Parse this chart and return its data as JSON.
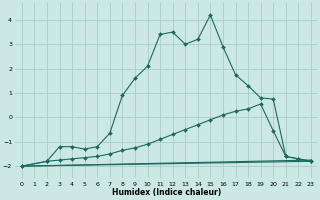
{
  "xlabel": "Humidex (Indice chaleur)",
  "background_color": "#cce8e4",
  "grid_color": "#aacccc",
  "line_color": "#1a6b5a",
  "xlim": [
    -0.5,
    23.5
  ],
  "ylim": [
    -2.5,
    4.7
  ],
  "yticks": [
    -2,
    -1,
    0,
    1,
    2,
    3,
    4
  ],
  "xticks": [
    0,
    1,
    2,
    3,
    4,
    5,
    6,
    7,
    8,
    9,
    10,
    11,
    12,
    13,
    14,
    15,
    16,
    17,
    18,
    19,
    20,
    21,
    22,
    23
  ],
  "line1_x": [
    0,
    2,
    3,
    4,
    5,
    6,
    7,
    8,
    9,
    10,
    11,
    12,
    13,
    14,
    15,
    16,
    17,
    18,
    19,
    20,
    21,
    22,
    23
  ],
  "line1_y": [
    -2.0,
    -1.8,
    -1.2,
    -1.2,
    -1.3,
    -1.2,
    -0.65,
    0.9,
    1.6,
    2.1,
    3.4,
    3.5,
    3.0,
    3.2,
    4.2,
    2.9,
    1.75,
    1.3,
    0.8,
    0.75,
    -1.6,
    -1.7,
    -1.8
  ],
  "line2_x": [
    0,
    2,
    3,
    4,
    5,
    6,
    7,
    8,
    9,
    10,
    11,
    12,
    13,
    14,
    15,
    16,
    17,
    18,
    19,
    20,
    21,
    22,
    23
  ],
  "line2_y": [
    -2.0,
    -1.8,
    -1.75,
    -1.7,
    -1.65,
    -1.6,
    -1.5,
    -1.35,
    -1.25,
    -1.1,
    -0.9,
    -0.7,
    -0.5,
    -0.3,
    -0.1,
    0.1,
    0.25,
    0.35,
    0.55,
    -0.55,
    -1.6,
    -1.7,
    -1.8
  ],
  "line3_x": [
    0,
    23
  ],
  "line3_y": [
    -2.0,
    -1.8
  ],
  "line4_x": [
    0,
    23
  ],
  "line4_y": [
    -2.0,
    -1.75
  ]
}
